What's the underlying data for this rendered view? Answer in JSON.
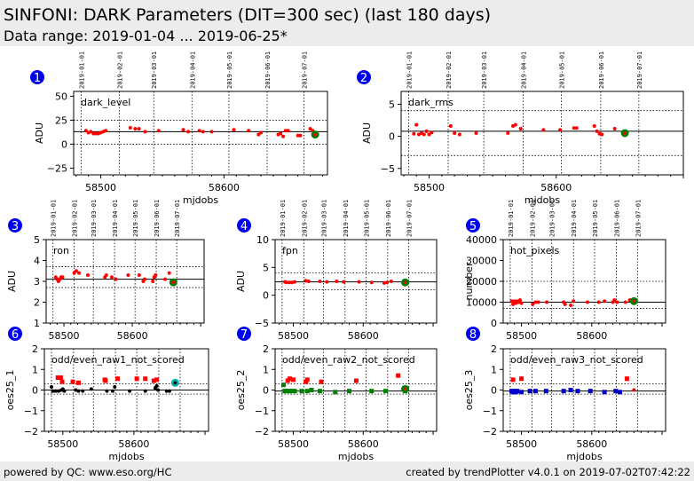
{
  "header": {
    "title": "SINFONI: DARK Parameters (DIT=300 sec) (last 180 days)",
    "subtitle": "Data range: 2019-01-04 ... 2019-06-25*"
  },
  "footer": {
    "left": "powered by QC: www.eso.org/HC",
    "right": "created by trendPlotter v4.0.1 on 2019-07-02T07:42:22"
  },
  "date_labels": [
    "2019-01-01",
    "2019-02-01",
    "2019-03-01",
    "2019-04-01",
    "2019-05-01",
    "2019-06-01",
    "2019-07-01"
  ],
  "date_mjd": [
    58484,
    58515,
    58543,
    58574,
    58604,
    58635,
    58665
  ],
  "colors": {
    "badge": "#0000ee",
    "point": "#ff0000",
    "ok": "#000000",
    "latest": "#008000",
    "latest_cyan": "#00b0b0"
  },
  "chart_data": [
    {
      "id": 1,
      "type": "scatter",
      "label": "dark_level",
      "ylabel": "ADU",
      "xlabel": "mjdobs",
      "xlim": [
        58478,
        58684
      ],
      "ylim": [
        -32,
        55
      ],
      "yticks": [
        -25,
        0,
        25,
        50
      ],
      "xticks": [
        58500,
        58600
      ],
      "hline": 13,
      "dotted": [
        0,
        25
      ],
      "show_dates": true,
      "points": [
        [
          58488,
          14,
          "r"
        ],
        [
          58490,
          12,
          "r"
        ],
        [
          58492,
          13,
          "r"
        ],
        [
          58494,
          11,
          "r"
        ],
        [
          58496,
          11,
          "r"
        ],
        [
          58498,
          11,
          "r"
        ],
        [
          58500,
          12,
          "r"
        ],
        [
          58502,
          13,
          "r"
        ],
        [
          58504,
          14,
          "r"
        ],
        [
          58524,
          17,
          "r"
        ],
        [
          58528,
          16,
          "r"
        ],
        [
          58531,
          16,
          "r"
        ],
        [
          58536,
          13,
          "r"
        ],
        [
          58547,
          14,
          "r"
        ],
        [
          58567,
          15,
          "r"
        ],
        [
          58571,
          13,
          "r"
        ],
        [
          58580,
          14,
          "r"
        ],
        [
          58583,
          13,
          "r"
        ],
        [
          58590,
          13,
          "r"
        ],
        [
          58608,
          15,
          "r"
        ],
        [
          58620,
          14,
          "r"
        ],
        [
          58628,
          10,
          "r"
        ],
        [
          58630,
          12,
          "r"
        ],
        [
          58644,
          10,
          "r"
        ],
        [
          58646,
          11,
          "r"
        ],
        [
          58648,
          8,
          "r"
        ],
        [
          58650,
          14,
          "r"
        ],
        [
          58652,
          14,
          "r"
        ],
        [
          58660,
          9,
          "r"
        ],
        [
          58662,
          9,
          "r"
        ],
        [
          58670,
          16,
          "r"
        ],
        [
          58672,
          14,
          "r"
        ],
        [
          58674,
          10,
          "g"
        ]
      ]
    },
    {
      "id": 2,
      "type": "scatter",
      "label": "dark_rms",
      "ylabel": "ADU",
      "xlabel": "mjdobs",
      "xlim": [
        58478,
        58700
      ],
      "ylim": [
        -6,
        7
      ],
      "yticks": [
        -5,
        0,
        5
      ],
      "xticks": [
        58500,
        58600
      ],
      "hline": 0.8,
      "dotted": [
        -3,
        4
      ],
      "show_dates": true,
      "points": [
        [
          58488,
          0.4,
          "r"
        ],
        [
          58490,
          1.8,
          "r"
        ],
        [
          58492,
          0.3,
          "r"
        ],
        [
          58494,
          0.5,
          "r"
        ],
        [
          58496,
          0.3,
          "r"
        ],
        [
          58498,
          0.8,
          "r"
        ],
        [
          58500,
          0.3,
          "r"
        ],
        [
          58502,
          0.6,
          "r"
        ],
        [
          58517,
          1.6,
          "r"
        ],
        [
          58520,
          0.5,
          "r"
        ],
        [
          58524,
          0.3,
          "r"
        ],
        [
          58537,
          0.5,
          "r"
        ],
        [
          58562,
          0.5,
          "r"
        ],
        [
          58566,
          1.6,
          "r"
        ],
        [
          58568,
          1.8,
          "r"
        ],
        [
          58572,
          1.2,
          "r"
        ],
        [
          58590,
          1.0,
          "r"
        ],
        [
          58603,
          1.0,
          "r"
        ],
        [
          58614,
          1.3,
          "r"
        ],
        [
          58616,
          1.3,
          "r"
        ],
        [
          58630,
          1.6,
          "r"
        ],
        [
          58632,
          0.8,
          "r"
        ],
        [
          58634,
          0.4,
          "r"
        ],
        [
          58636,
          0.3,
          "r"
        ],
        [
          58646,
          1.2,
          "r"
        ],
        [
          58654,
          0.5,
          "g"
        ]
      ]
    },
    {
      "id": 3,
      "type": "scatter",
      "label": "ron",
      "ylabel": "ADU",
      "xlabel": "",
      "xlim": [
        58474,
        58705
      ],
      "ylim": [
        1,
        5
      ],
      "yticks": [
        1,
        2,
        3,
        4,
        5
      ],
      "xticks": [
        58500,
        58600
      ],
      "hline": 3.1,
      "dotted": [
        2.7,
        3.7
      ],
      "show_dates": true,
      "points": [
        [
          58488,
          3.2,
          "r"
        ],
        [
          58490,
          3.1,
          "r"
        ],
        [
          58492,
          3.0,
          "r"
        ],
        [
          58494,
          3.1,
          "r"
        ],
        [
          58496,
          3.2,
          "r"
        ],
        [
          58498,
          3.2,
          "r"
        ],
        [
          58515,
          3.4,
          "r"
        ],
        [
          58518,
          3.5,
          "r"
        ],
        [
          58522,
          3.4,
          "r"
        ],
        [
          58535,
          3.3,
          "r"
        ],
        [
          58560,
          3.2,
          "r"
        ],
        [
          58562,
          3.3,
          "r"
        ],
        [
          58570,
          3.2,
          "r"
        ],
        [
          58576,
          3.1,
          "r"
        ],
        [
          58594,
          3.3,
          "r"
        ],
        [
          58610,
          3.3,
          "r"
        ],
        [
          58616,
          3.0,
          "r"
        ],
        [
          58618,
          3.1,
          "r"
        ],
        [
          58630,
          3.0,
          "r"
        ],
        [
          58632,
          3.2,
          "r"
        ],
        [
          58634,
          3.3,
          "r"
        ],
        [
          58648,
          3.1,
          "r"
        ],
        [
          58654,
          3.4,
          "r"
        ],
        [
          58660,
          2.95,
          "g"
        ]
      ]
    },
    {
      "id": 4,
      "type": "scatter",
      "label": "fpn",
      "ylabel": "ADU",
      "xlabel": "",
      "xlim": [
        58474,
        58705
      ],
      "ylim": [
        -5,
        10
      ],
      "yticks": [
        -5,
        0,
        5,
        10
      ],
      "xticks": [
        58500,
        58600
      ],
      "hline": 2.4,
      "dotted": [
        1,
        4
      ],
      "show_dates": true,
      "points": [
        [
          58488,
          2.4,
          "r"
        ],
        [
          58490,
          2.3,
          "r"
        ],
        [
          58494,
          2.3,
          "r"
        ],
        [
          58498,
          2.3,
          "r"
        ],
        [
          58502,
          2.4,
          "r"
        ],
        [
          58518,
          2.6,
          "r"
        ],
        [
          58522,
          2.5,
          "r"
        ],
        [
          58538,
          2.5,
          "r"
        ],
        [
          58548,
          2.4,
          "r"
        ],
        [
          58562,
          2.5,
          "r"
        ],
        [
          58572,
          2.4,
          "r"
        ],
        [
          58594,
          2.4,
          "r"
        ],
        [
          58612,
          2.3,
          "r"
        ],
        [
          58630,
          2.2,
          "r"
        ],
        [
          58634,
          2.3,
          "r"
        ],
        [
          58640,
          2.5,
          "r"
        ],
        [
          58660,
          2.3,
          "g"
        ]
      ]
    },
    {
      "id": 5,
      "type": "scatter",
      "label": "hot_pixels",
      "ylabel": "number",
      "xlabel": "",
      "xlim": [
        58474,
        58705
      ],
      "ylim": [
        0,
        40000
      ],
      "yticks": [
        0,
        10000,
        20000,
        30000,
        40000
      ],
      "xticks": [
        58500,
        58600
      ],
      "hline": 10000,
      "dotted": [
        7000,
        20000
      ],
      "show_dates": true,
      "points": [
        [
          58486,
          10500,
          "r"
        ],
        [
          58488,
          9000,
          "r"
        ],
        [
          58490,
          10500,
          "r"
        ],
        [
          58492,
          9500,
          "r"
        ],
        [
          58494,
          10500,
          "r"
        ],
        [
          58496,
          10000,
          "r"
        ],
        [
          58498,
          11000,
          "r"
        ],
        [
          58500,
          9500,
          "r"
        ],
        [
          58516,
          9000,
          "r"
        ],
        [
          58520,
          10000,
          "r"
        ],
        [
          58524,
          10000,
          "r"
        ],
        [
          58536,
          10000,
          "r"
        ],
        [
          58560,
          10000,
          "r"
        ],
        [
          58562,
          9000,
          "r"
        ],
        [
          58570,
          8500,
          "r"
        ],
        [
          58574,
          10500,
          "r"
        ],
        [
          58594,
          10000,
          "r"
        ],
        [
          58610,
          10000,
          "r"
        ],
        [
          58618,
          10500,
          "r"
        ],
        [
          58630,
          10000,
          "r"
        ],
        [
          58632,
          11000,
          "r"
        ],
        [
          58636,
          10000,
          "r"
        ],
        [
          58648,
          10000,
          "r"
        ],
        [
          58654,
          11000,
          "r"
        ],
        [
          58660,
          10500,
          "g"
        ]
      ]
    },
    {
      "id": 6,
      "type": "scatter",
      "label": "odd/even_raw1_not_scored",
      "ylabel": "oes25_1",
      "xlabel": "mjdobs",
      "xlim": [
        58474,
        58705
      ],
      "ylim": [
        -2,
        2
      ],
      "yticks": [
        -2,
        -1,
        0,
        1,
        2
      ],
      "xticks": [
        58500,
        58600
      ],
      "hline": 0,
      "dotted": [
        0.3,
        -0.2
      ],
      "show_dates": false,
      "points": [
        [
          58484,
          0.15,
          "k"
        ],
        [
          58486,
          -0.05,
          "k"
        ],
        [
          58490,
          -0.05,
          "k"
        ],
        [
          58494,
          -0.05,
          "k"
        ],
        [
          58498,
          0.0,
          "k"
        ],
        [
          58500,
          0.05,
          "k"
        ],
        [
          58502,
          -0.05,
          "k"
        ],
        [
          58518,
          0.0,
          "k"
        ],
        [
          58522,
          -0.05,
          "k"
        ],
        [
          58528,
          -0.05,
          "k"
        ],
        [
          58540,
          0.05,
          "k"
        ],
        [
          58562,
          -0.05,
          "k"
        ],
        [
          58570,
          -0.05,
          "k"
        ],
        [
          58573,
          0.15,
          "k"
        ],
        [
          58594,
          -0.05,
          "k"
        ],
        [
          58616,
          -0.05,
          "k"
        ],
        [
          58630,
          0.1,
          "k"
        ],
        [
          58632,
          0.2,
          "k"
        ],
        [
          58634,
          0.0,
          "k"
        ],
        [
          58646,
          -0.05,
          "k"
        ],
        [
          58650,
          -0.05,
          "k"
        ],
        [
          58493,
          0.6,
          "rs"
        ],
        [
          58497,
          0.6,
          "rs"
        ],
        [
          58499,
          0.4,
          "rs"
        ],
        [
          58514,
          0.4,
          "rs"
        ],
        [
          58522,
          0.35,
          "rs"
        ],
        [
          58559,
          0.5,
          "rs"
        ],
        [
          58560,
          0.45,
          "rs"
        ],
        [
          58577,
          0.55,
          "rs"
        ],
        [
          58604,
          0.55,
          "rs"
        ],
        [
          58616,
          0.55,
          "rs"
        ],
        [
          58628,
          0.45,
          "rs"
        ],
        [
          58632,
          0.5,
          "rs"
        ],
        [
          58658,
          0.35,
          "c"
        ]
      ]
    },
    {
      "id": 7,
      "type": "scatter",
      "label": "odd/even_raw2_not_scored",
      "ylabel": "oes25_2",
      "xlabel": "mjdobs",
      "xlim": [
        58474,
        58705
      ],
      "ylim": [
        -2,
        2
      ],
      "yticks": [
        -2,
        -1,
        0,
        1,
        2
      ],
      "xticks": [
        58500,
        58600
      ],
      "hline": -0.05,
      "dotted": [
        0.3,
        -0.2
      ],
      "show_dates": false,
      "points": [
        [
          58486,
          0.25,
          "gs"
        ],
        [
          58488,
          -0.05,
          "gs"
        ],
        [
          58490,
          -0.05,
          "gs"
        ],
        [
          58494,
          -0.05,
          "gs"
        ],
        [
          58498,
          -0.05,
          "gs"
        ],
        [
          58502,
          -0.05,
          "gs"
        ],
        [
          58512,
          -0.05,
          "gs"
        ],
        [
          58520,
          -0.05,
          "gs"
        ],
        [
          58526,
          0.0,
          "gs"
        ],
        [
          58538,
          -0.05,
          "gs"
        ],
        [
          58560,
          -0.1,
          "gs"
        ],
        [
          58580,
          -0.05,
          "gs"
        ],
        [
          58612,
          -0.05,
          "gs"
        ],
        [
          58632,
          -0.05,
          "gs"
        ],
        [
          58660,
          -0.05,
          "gs"
        ],
        [
          58492,
          0.45,
          "rs"
        ],
        [
          58495,
          0.55,
          "rs"
        ],
        [
          58500,
          0.5,
          "rs"
        ],
        [
          58518,
          0.4,
          "rs"
        ],
        [
          58520,
          0.5,
          "rs"
        ],
        [
          58540,
          0.4,
          "rs"
        ],
        [
          58590,
          0.45,
          "rs"
        ],
        [
          58650,
          0.7,
          "rs"
        ],
        [
          58660,
          0.05,
          "g"
        ]
      ]
    },
    {
      "id": 8,
      "type": "scatter",
      "label": "odd/even_raw3_not_scored",
      "ylabel": "oes25_3",
      "xlabel": "mjdobs",
      "xlim": [
        58474,
        58705
      ],
      "ylim": [
        -2,
        2
      ],
      "yticks": [
        -2,
        -1,
        0,
        1,
        2
      ],
      "xticks": [
        58500,
        58600
      ],
      "hline": -0.05,
      "dotted": [
        0.3,
        -0.2
      ],
      "show_dates": false,
      "points": [
        [
          58486,
          -0.05,
          "bs"
        ],
        [
          58488,
          -0.1,
          "bs"
        ],
        [
          58490,
          -0.05,
          "bs"
        ],
        [
          58492,
          -0.1,
          "bs"
        ],
        [
          58494,
          -0.05,
          "bs"
        ],
        [
          58500,
          -0.1,
          "bs"
        ],
        [
          58512,
          -0.05,
          "bs"
        ],
        [
          58520,
          -0.05,
          "bs"
        ],
        [
          58535,
          -0.05,
          "bs"
        ],
        [
          58560,
          -0.05,
          "bs"
        ],
        [
          58570,
          0.0,
          "bs"
        ],
        [
          58580,
          -0.05,
          "bs"
        ],
        [
          58598,
          -0.05,
          "bs"
        ],
        [
          58618,
          -0.1,
          "bs"
        ],
        [
          58634,
          -0.05,
          "bs"
        ],
        [
          58640,
          -0.1,
          "bs"
        ],
        [
          58488,
          0.5,
          "rs"
        ],
        [
          58500,
          0.55,
          "rs"
        ],
        [
          58650,
          0.55,
          "rs"
        ],
        [
          58660,
          0.0,
          "r"
        ]
      ]
    }
  ]
}
